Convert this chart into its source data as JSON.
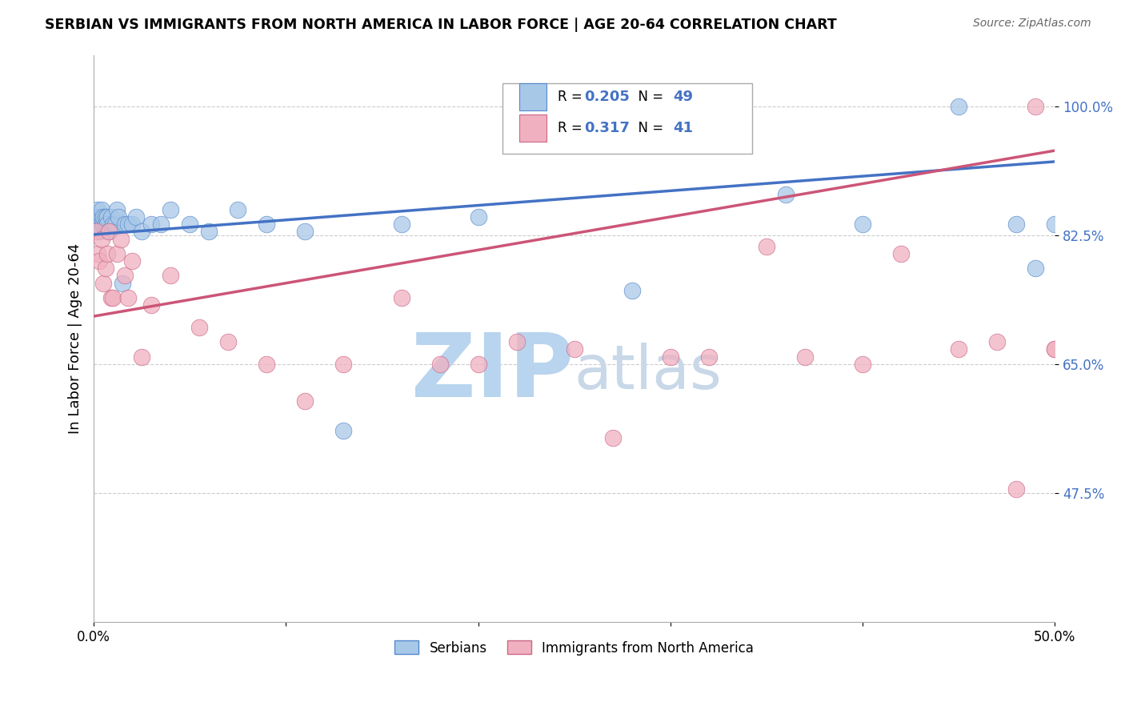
{
  "title": "SERBIAN VS IMMIGRANTS FROM NORTH AMERICA IN LABOR FORCE | AGE 20-64 CORRELATION CHART",
  "source": "Source: ZipAtlas.com",
  "ylabel": "In Labor Force | Age 20-64",
  "xlim": [
    0.0,
    0.5
  ],
  "ylim": [
    0.3,
    1.07
  ],
  "xticks": [
    0.0,
    0.1,
    0.2,
    0.3,
    0.4,
    0.5
  ],
  "xticklabels": [
    "0.0%",
    "",
    "",
    "",
    "",
    "50.0%"
  ],
  "ytick_positions": [
    0.475,
    0.65,
    0.825,
    1.0
  ],
  "ytick_labels": [
    "47.5%",
    "65.0%",
    "82.5%",
    "100.0%"
  ],
  "blue_color": "#a8c8e8",
  "blue_edge_color": "#5588cc",
  "blue_line_color": "#4472c4",
  "pink_color": "#f0b0c0",
  "pink_edge_color": "#cc6688",
  "pink_line_color": "#cc5577",
  "R_blue": 0.205,
  "N_blue": 49,
  "R_pink": 0.317,
  "N_pink": 41,
  "legend_labels": [
    "Serbians",
    "Immigrants from North America"
  ],
  "watermark_zip": "ZIP",
  "watermark_atlas": "atlas",
  "watermark_color_zip": "#b8d4ee",
  "watermark_color_atlas": "#c8d8e8",
  "blue_scatter_x": [
    0.001,
    0.001,
    0.002,
    0.002,
    0.002,
    0.003,
    0.003,
    0.003,
    0.004,
    0.004,
    0.004,
    0.005,
    0.005,
    0.006,
    0.006,
    0.007,
    0.007,
    0.008,
    0.009,
    0.01,
    0.011,
    0.012,
    0.013,
    0.015,
    0.016,
    0.018,
    0.02,
    0.022,
    0.025,
    0.03,
    0.035,
    0.04,
    0.05,
    0.06,
    0.075,
    0.09,
    0.11,
    0.13,
    0.16,
    0.2,
    0.24,
    0.28,
    0.32,
    0.36,
    0.4,
    0.45,
    0.48,
    0.49,
    0.5
  ],
  "blue_scatter_y": [
    0.84,
    0.85,
    0.84,
    0.85,
    0.86,
    0.84,
    0.85,
    0.83,
    0.85,
    0.84,
    0.86,
    0.84,
    0.85,
    0.84,
    0.85,
    0.85,
    0.84,
    0.83,
    0.85,
    0.84,
    0.84,
    0.86,
    0.85,
    0.76,
    0.84,
    0.84,
    0.84,
    0.85,
    0.83,
    0.84,
    0.84,
    0.86,
    0.84,
    0.83,
    0.86,
    0.84,
    0.83,
    0.56,
    0.84,
    0.85,
    0.97,
    0.75,
    1.0,
    0.88,
    0.84,
    1.0,
    0.84,
    0.78,
    0.84
  ],
  "pink_scatter_x": [
    0.001,
    0.002,
    0.003,
    0.004,
    0.005,
    0.006,
    0.007,
    0.008,
    0.009,
    0.01,
    0.012,
    0.014,
    0.016,
    0.018,
    0.02,
    0.025,
    0.03,
    0.04,
    0.055,
    0.07,
    0.09,
    0.11,
    0.13,
    0.16,
    0.18,
    0.2,
    0.22,
    0.25,
    0.27,
    0.3,
    0.32,
    0.35,
    0.37,
    0.4,
    0.42,
    0.45,
    0.47,
    0.48,
    0.49,
    0.5,
    0.5
  ],
  "pink_scatter_y": [
    0.83,
    0.8,
    0.79,
    0.82,
    0.76,
    0.78,
    0.8,
    0.83,
    0.74,
    0.74,
    0.8,
    0.82,
    0.77,
    0.74,
    0.79,
    0.66,
    0.73,
    0.77,
    0.7,
    0.68,
    0.65,
    0.6,
    0.65,
    0.74,
    0.65,
    0.65,
    0.68,
    0.67,
    0.55,
    0.66,
    0.66,
    0.81,
    0.66,
    0.65,
    0.8,
    0.67,
    0.68,
    0.48,
    1.0,
    0.67,
    0.67
  ],
  "blue_trend_x0": 0.0,
  "blue_trend_x1": 0.5,
  "blue_trend_y0": 0.826,
  "blue_trend_y1": 0.925,
  "pink_trend_x0": 0.0,
  "pink_trend_x1": 0.5,
  "pink_trend_y0": 0.715,
  "pink_trend_y1": 0.94,
  "grid_color": "#cccccc",
  "grid_style": "--",
  "spine_color": "#aaaaaa"
}
